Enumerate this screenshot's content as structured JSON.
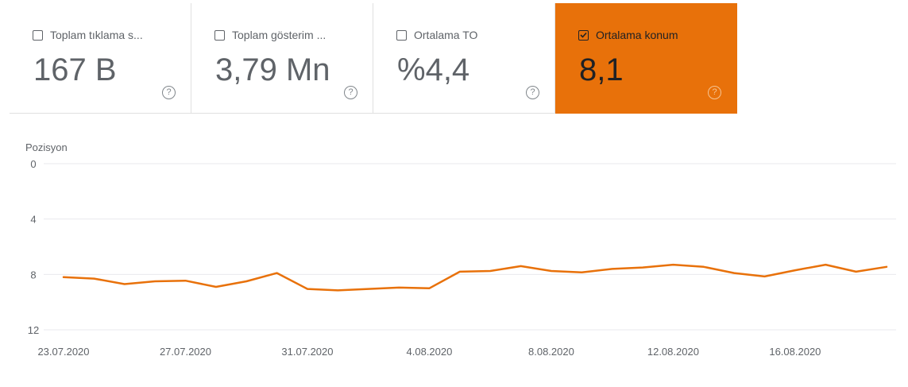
{
  "cards": [
    {
      "label": "Toplam tıklama s...",
      "value": "167 B",
      "checked": false,
      "help": "?"
    },
    {
      "label": "Toplam gösterim ...",
      "value": "3,79 Mn",
      "checked": false,
      "help": "?"
    },
    {
      "label": "Ortalama TO",
      "value": "%4,4",
      "checked": false,
      "help": "?"
    },
    {
      "label": "Ortalama konum",
      "value": "8,1",
      "checked": true,
      "help": "?"
    }
  ],
  "colors": {
    "accent": "#e8710a",
    "grid": "#e8eaed",
    "text": "#5f6368"
  },
  "chart_data": {
    "type": "line",
    "ylabel": "Pozisyon",
    "ylim": [
      0,
      12
    ],
    "y_reversed": true,
    "yticks": [
      "0",
      "4",
      "8",
      "12"
    ],
    "xticks": [
      "23.07.2020",
      "27.07.2020",
      "31.07.2020",
      "4.08.2020",
      "8.08.2020",
      "12.08.2020",
      "16.08.2020"
    ],
    "grid": true,
    "series": [
      {
        "color": "#e8710a",
        "x": [
          "23.07.2020",
          "24.07.2020",
          "25.07.2020",
          "26.07.2020",
          "27.07.2020",
          "28.07.2020",
          "29.07.2020",
          "30.07.2020",
          "31.07.2020",
          "1.08.2020",
          "2.08.2020",
          "3.08.2020",
          "4.08.2020",
          "5.08.2020",
          "6.08.2020",
          "7.08.2020",
          "8.08.2020",
          "9.08.2020",
          "10.08.2020",
          "11.08.2020",
          "12.08.2020",
          "13.08.2020",
          "14.08.2020",
          "15.08.2020",
          "16.08.2020",
          "17.08.2020",
          "18.08.2020",
          "19.08.2020"
        ],
        "values": [
          8.2,
          8.3,
          8.7,
          8.5,
          8.45,
          8.9,
          8.5,
          7.9,
          9.05,
          9.15,
          9.05,
          8.95,
          9.0,
          7.8,
          7.75,
          7.4,
          7.75,
          7.85,
          7.6,
          7.5,
          7.3,
          7.45,
          7.9,
          8.15,
          7.7,
          7.3,
          7.8,
          7.45
        ]
      }
    ]
  }
}
